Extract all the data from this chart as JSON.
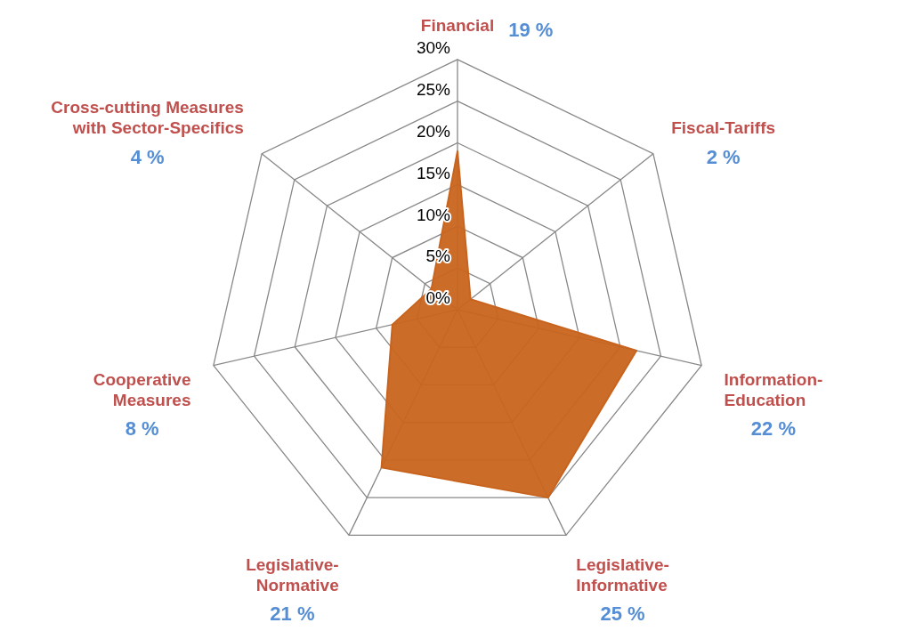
{
  "chart_data": {
    "type": "radar",
    "categories": [
      "Financial",
      "Fiscal-Tariffs",
      "Information-Education",
      "Legislative-Informative",
      "Legislative-Normative",
      "Cooperative Measures",
      "Cross-cutting Measures with Sector-Specifics"
    ],
    "series": [
      {
        "color": "#c8641e",
        "values": [
          19,
          2,
          22,
          25,
          21,
          8,
          4
        ]
      }
    ],
    "annotations": [
      "19 %",
      "2 %",
      "22 %",
      "25 %",
      "21 %",
      "8 %",
      "4 %"
    ],
    "ylim": [
      0,
      30
    ],
    "yticks": [
      {
        "value": 0,
        "label": "0%"
      },
      {
        "value": 5,
        "label": "5%"
      },
      {
        "value": 10,
        "label": "10%"
      },
      {
        "value": 15,
        "label": "15%"
      },
      {
        "value": 20,
        "label": "20%"
      },
      {
        "value": 25,
        "label": "25%"
      },
      {
        "value": 30,
        "label": "30%"
      }
    ],
    "grid": true,
    "legend": false,
    "marker": "none"
  }
}
